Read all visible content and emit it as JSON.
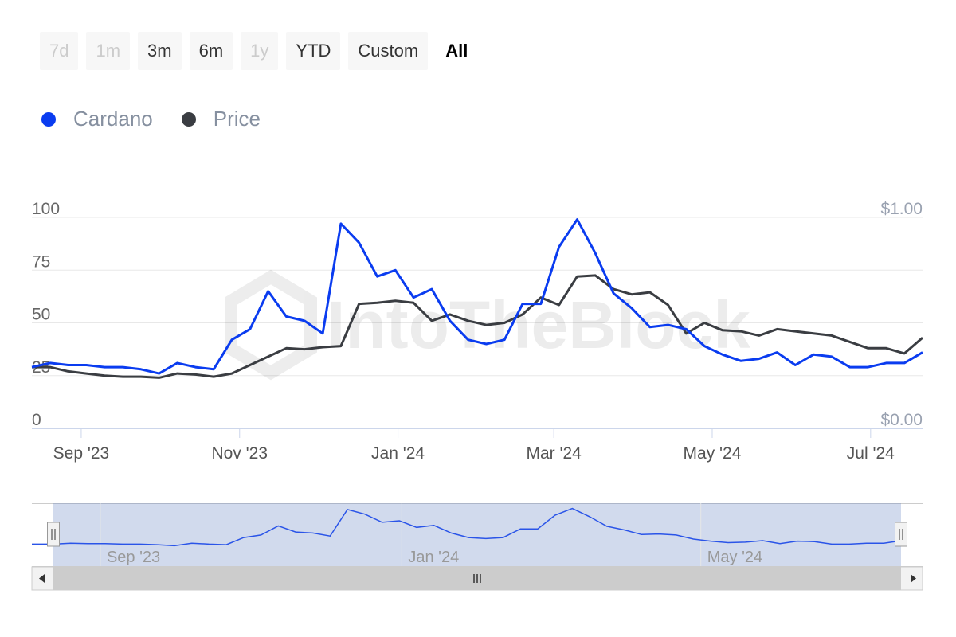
{
  "range_selector": {
    "buttons": [
      {
        "label": "7d",
        "state": "disabled"
      },
      {
        "label": "1m",
        "state": "disabled"
      },
      {
        "label": "3m",
        "state": "enabled"
      },
      {
        "label": "6m",
        "state": "enabled"
      },
      {
        "label": "1y",
        "state": "disabled"
      },
      {
        "label": "YTD",
        "state": "enabled"
      },
      {
        "label": "Custom",
        "state": "enabled"
      },
      {
        "label": "All",
        "state": "selected"
      }
    ]
  },
  "legend": [
    {
      "label": "Cardano",
      "color": "#0a3cf0"
    },
    {
      "label": "Price",
      "color": "#3a3d42"
    }
  ],
  "watermark": "IntoTheBlock",
  "chart_data": {
    "type": "line",
    "x": [
      "2023-08-13",
      "2023-08-20",
      "2023-08-27",
      "2023-09-03",
      "2023-09-10",
      "2023-09-17",
      "2023-09-24",
      "2023-10-01",
      "2023-10-08",
      "2023-10-15",
      "2023-10-22",
      "2023-10-29",
      "2023-11-05",
      "2023-11-12",
      "2023-11-19",
      "2023-11-26",
      "2023-12-03",
      "2023-12-10",
      "2023-12-17",
      "2023-12-24",
      "2023-12-31",
      "2024-01-07",
      "2024-01-14",
      "2024-01-21",
      "2024-01-28",
      "2024-02-04",
      "2024-02-11",
      "2024-02-18",
      "2024-02-25",
      "2024-03-03",
      "2024-03-10",
      "2024-03-17",
      "2024-03-24",
      "2024-03-31",
      "2024-04-07",
      "2024-04-14",
      "2024-04-21",
      "2024-04-28",
      "2024-05-05",
      "2024-05-12",
      "2024-05-19",
      "2024-05-26",
      "2024-06-02",
      "2024-06-09",
      "2024-06-16",
      "2024-06-23",
      "2024-06-30",
      "2024-07-07",
      "2024-07-14",
      "2024-07-21"
    ],
    "series": [
      {
        "name": "Cardano",
        "axis": "left",
        "color": "#0a3cf0",
        "values": [
          29,
          31,
          30,
          30,
          29,
          29,
          28,
          26,
          31,
          29,
          28,
          42,
          47,
          65,
          53,
          51,
          45,
          97,
          88,
          72,
          75,
          62,
          66,
          51,
          42,
          40,
          42,
          59,
          59,
          86,
          99,
          83,
          64,
          57,
          48,
          49,
          47,
          39,
          35,
          32,
          33,
          36,
          30,
          35,
          34,
          29,
          29,
          31,
          31,
          36
        ]
      },
      {
        "name": "Price",
        "axis": "right",
        "color": "#3a3d42",
        "values": [
          0.29,
          0.29,
          0.27,
          0.26,
          0.25,
          0.245,
          0.245,
          0.24,
          0.26,
          0.255,
          0.245,
          0.26,
          0.3,
          0.34,
          0.38,
          0.375,
          0.385,
          0.39,
          0.59,
          0.595,
          0.605,
          0.595,
          0.51,
          0.54,
          0.51,
          0.49,
          0.5,
          0.54,
          0.62,
          0.585,
          0.72,
          0.725,
          0.66,
          0.635,
          0.645,
          0.585,
          0.45,
          0.5,
          0.465,
          0.46,
          0.44,
          0.47,
          0.46,
          0.45,
          0.44,
          0.41,
          0.38,
          0.38,
          0.355,
          0.43
        ]
      }
    ],
    "x_tick_labels": [
      "Sep '23",
      "Nov '23",
      "Jan '24",
      "Mar '24",
      "May '24",
      "Jul '24"
    ],
    "x_tick_dates": [
      "2023-09-01",
      "2023-11-01",
      "2024-01-01",
      "2024-03-01",
      "2024-05-01",
      "2024-07-01"
    ],
    "y_left": {
      "ticks": [
        0,
        25,
        50,
        75,
        100
      ],
      "labels": [
        "0",
        "25",
        "50",
        "75",
        "100"
      ],
      "range": [
        0,
        100
      ]
    },
    "y_right": {
      "ticks": [
        0,
        1
      ],
      "labels": [
        "$0.00",
        "$1.00"
      ],
      "range": [
        0,
        1
      ]
    },
    "grid": true,
    "legend_position": "top-left",
    "navigator": {
      "tick_labels": [
        "Sep '23",
        "Jan '24",
        "May '24"
      ],
      "tick_dates": [
        "2023-09-01",
        "2024-01-01",
        "2024-05-01"
      ]
    }
  }
}
